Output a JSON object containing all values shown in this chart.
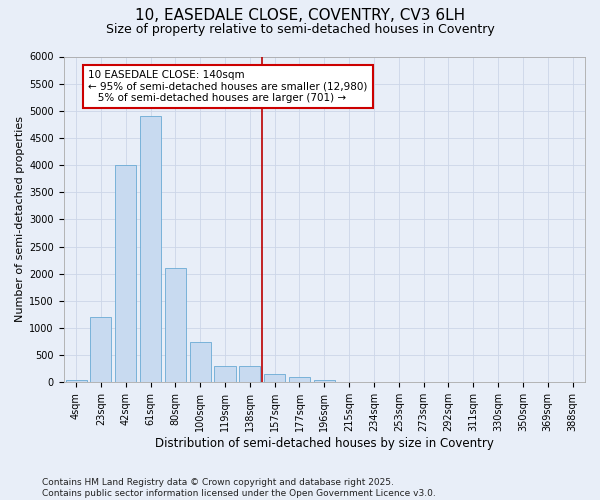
{
  "title_line1": "10, EASEDALE CLOSE, COVENTRY, CV3 6LH",
  "title_line2": "Size of property relative to semi-detached houses in Coventry",
  "xlabel": "Distribution of semi-detached houses by size in Coventry",
  "ylabel": "Number of semi-detached properties",
  "categories": [
    "4sqm",
    "23sqm",
    "42sqm",
    "61sqm",
    "80sqm",
    "100sqm",
    "119sqm",
    "138sqm",
    "157sqm",
    "177sqm",
    "196sqm",
    "215sqm",
    "234sqm",
    "253sqm",
    "273sqm",
    "292sqm",
    "311sqm",
    "330sqm",
    "350sqm",
    "369sqm",
    "388sqm"
  ],
  "values": [
    50,
    1200,
    4000,
    4900,
    2100,
    750,
    300,
    300,
    150,
    100,
    50,
    10,
    5,
    3,
    2,
    1,
    1,
    0,
    0,
    0,
    0
  ],
  "bar_color": "#c8daf0",
  "bar_edge_color": "#6aaad4",
  "grid_color": "#ccd6e8",
  "background_color": "#e8eef8",
  "vline_color": "#bb0000",
  "annotation_text": "10 EASEDALE CLOSE: 140sqm\n← 95% of semi-detached houses are smaller (12,980)\n   5% of semi-detached houses are larger (701) →",
  "annotation_box_color": "#ffffff",
  "annotation_border_color": "#cc0000",
  "ylim": [
    0,
    6000
  ],
  "yticks": [
    0,
    500,
    1000,
    1500,
    2000,
    2500,
    3000,
    3500,
    4000,
    4500,
    5000,
    5500,
    6000
  ],
  "footer_text": "Contains HM Land Registry data © Crown copyright and database right 2025.\nContains public sector information licensed under the Open Government Licence v3.0.",
  "title_fontsize": 11,
  "subtitle_fontsize": 9,
  "axis_label_fontsize": 8,
  "tick_fontsize": 7,
  "annotation_fontsize": 7.5,
  "footer_fontsize": 6.5,
  "vline_index": 7.5
}
